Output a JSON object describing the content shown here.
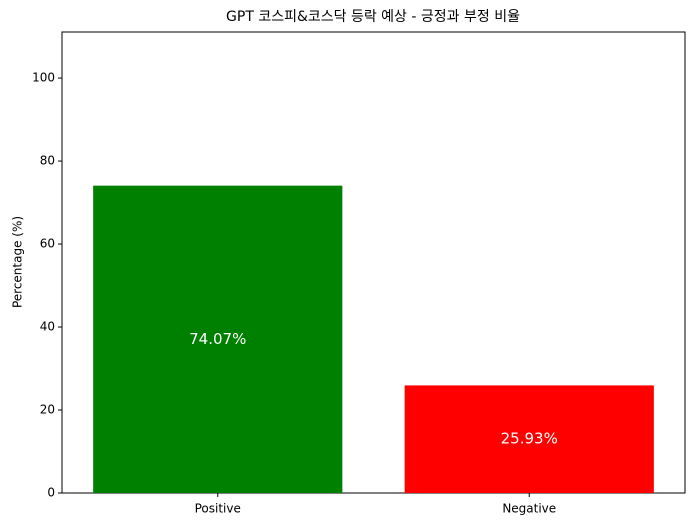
{
  "chart_data": {
    "type": "bar",
    "title": "GPT 코스피&코스닥 등락 예상 - 긍정과 부정 비율",
    "ylabel": "Percentage (%)",
    "categories": [
      "Positive",
      "Negative"
    ],
    "values": [
      74.07,
      25.93
    ],
    "value_labels": [
      "74.07%",
      "25.93%"
    ],
    "colors": [
      "green",
      "red"
    ],
    "ylim": [
      0,
      111.1
    ],
    "yticks": [
      0,
      20,
      40,
      60,
      80,
      100
    ],
    "grid": false
  }
}
